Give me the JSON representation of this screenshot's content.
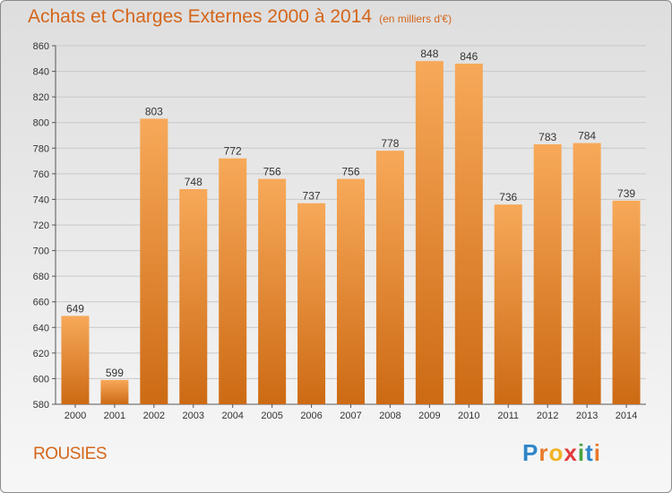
{
  "title": "Achats et Charges Externes 2000 à 2014",
  "subtitle": "(en milliers d'€)",
  "location": "ROUSIES",
  "logo": {
    "letters": [
      "P",
      "r",
      "o",
      "x",
      "i",
      "t",
      "i"
    ],
    "colors": [
      "#2f86c9",
      "#e8792a",
      "#f0b323",
      "#e23b3b",
      "#48a23f",
      "#2f86c9",
      "#e8792a"
    ]
  },
  "colors": {
    "title": "#d4661b",
    "bar_top": "#f7a959",
    "bar_bottom": "#cd6a14",
    "grid": "#c8c8c8"
  },
  "chart_data": {
    "type": "bar",
    "categories": [
      "2000",
      "2001",
      "2002",
      "2003",
      "2004",
      "2005",
      "2006",
      "2007",
      "2008",
      "2009",
      "2010",
      "2011",
      "2012",
      "2013",
      "2014"
    ],
    "values": [
      649,
      599,
      803,
      748,
      772,
      756,
      737,
      756,
      778,
      848,
      846,
      736,
      783,
      784,
      739
    ],
    "ylim": [
      580,
      860
    ],
    "yticks": [
      580,
      600,
      620,
      640,
      660,
      680,
      700,
      720,
      740,
      760,
      780,
      800,
      820,
      840,
      860
    ],
    "grid": true,
    "xlabel": "",
    "ylabel": ""
  }
}
